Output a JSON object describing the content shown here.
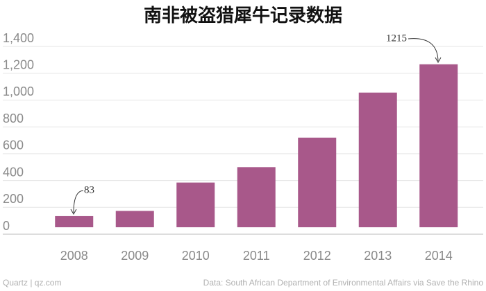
{
  "chart_data": {
    "type": "bar",
    "title": "南非被盗猎犀牛记录数据",
    "categories": [
      "2008",
      "2009",
      "2010",
      "2011",
      "2012",
      "2013",
      "2014"
    ],
    "values": [
      83,
      122,
      333,
      448,
      668,
      1004,
      1215
    ],
    "color": "#a8588a",
    "ylim": [
      0,
      1400
    ],
    "yticks": [
      0,
      200,
      400,
      600,
      800,
      {
        "value": 1000,
        "label": "1,000"
      },
      {
        "value": 1200,
        "label": "1,200"
      },
      {
        "value": 1400,
        "label": "1,400"
      }
    ],
    "grid": true,
    "annotations": [
      "83",
      "1215"
    ],
    "footer": "Quartz | qz.com",
    "source": "Data: South African Department of Environmental Affairs via Save the Rhino"
  }
}
